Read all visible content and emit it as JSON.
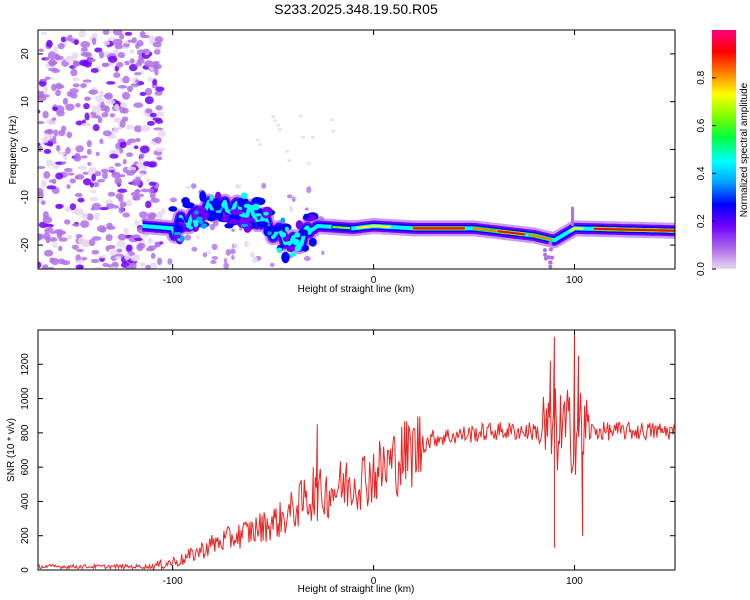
{
  "title": "S233.2025.348.19.50.R05",
  "chart_data": [
    {
      "type": "heatmap",
      "name": "spectrogram",
      "xlabel": "Height of straight line (km)",
      "ylabel": "Frequency (Hz)",
      "xlim": [
        -167,
        150
      ],
      "ylim": [
        -25,
        25
      ],
      "xticks": [
        -100,
        0,
        100
      ],
      "yticks": [
        20,
        10,
        0,
        -10,
        -20
      ],
      "colorbar": {
        "label": "Normalized spectral amplitude",
        "range": [
          0,
          1
        ],
        "ticks": [
          "0.0",
          "0.2",
          "0.4",
          "0.6",
          "0.8"
        ],
        "stops": [
          "#e8d8f0",
          "#b070e8",
          "#7000ff",
          "#0000ff",
          "#00a0ff",
          "#00ffff",
          "#00ff40",
          "#80ff00",
          "#ffff00",
          "#ff8000",
          "#ff0000",
          "#ff0080"
        ]
      },
      "ridge": {
        "description": "dominant frequency track",
        "points": [
          {
            "x": -115,
            "f": -16
          },
          {
            "x": -100,
            "f": -16.5
          },
          {
            "x": -85,
            "f": -13
          },
          {
            "x": -70,
            "f": -12
          },
          {
            "x": -55,
            "f": -15
          },
          {
            "x": -40,
            "f": -20
          },
          {
            "x": -28,
            "f": -16
          },
          {
            "x": -10,
            "f": -16.5
          },
          {
            "x": 0,
            "f": -16
          },
          {
            "x": 20,
            "f": -16.5
          },
          {
            "x": 50,
            "f": -16.5
          },
          {
            "x": 80,
            "f": -18
          },
          {
            "x": 90,
            "f": -19
          },
          {
            "x": 100,
            "f": -16.5
          },
          {
            "x": 150,
            "f": -17
          }
        ]
      }
    },
    {
      "type": "line",
      "name": "snr",
      "xlabel": "Height of straight line (km)",
      "ylabel": "SNR (10 * v/v)",
      "xlim": [
        -167,
        150
      ],
      "ylim": [
        0,
        1400
      ],
      "xticks": [
        -100,
        0,
        100
      ],
      "yticks": [
        0,
        200,
        400,
        600,
        800,
        1000,
        1200
      ],
      "color": "#ee2222",
      "trend": [
        {
          "x": -167,
          "y": 20
        },
        {
          "x": -110,
          "y": 20
        },
        {
          "x": -95,
          "y": 60
        },
        {
          "x": -80,
          "y": 150
        },
        {
          "x": -60,
          "y": 230
        },
        {
          "x": -45,
          "y": 300
        },
        {
          "x": -35,
          "y": 400
        },
        {
          "x": -20,
          "y": 470
        },
        {
          "x": 0,
          "y": 560
        },
        {
          "x": 20,
          "y": 700
        },
        {
          "x": 30,
          "y": 770
        },
        {
          "x": 60,
          "y": 810
        },
        {
          "x": 100,
          "y": 810
        },
        {
          "x": 150,
          "y": 810
        }
      ],
      "spikes": [
        {
          "x": -28,
          "y": 850
        },
        {
          "x": -30,
          "y": 600
        },
        {
          "x": 88,
          "y": 1220
        },
        {
          "x": 90,
          "y": 1360
        },
        {
          "x": 90,
          "y": 130
        },
        {
          "x": 100,
          "y": 1370
        },
        {
          "x": 102,
          "y": 1250
        },
        {
          "x": 104,
          "y": 200
        }
      ]
    }
  ]
}
